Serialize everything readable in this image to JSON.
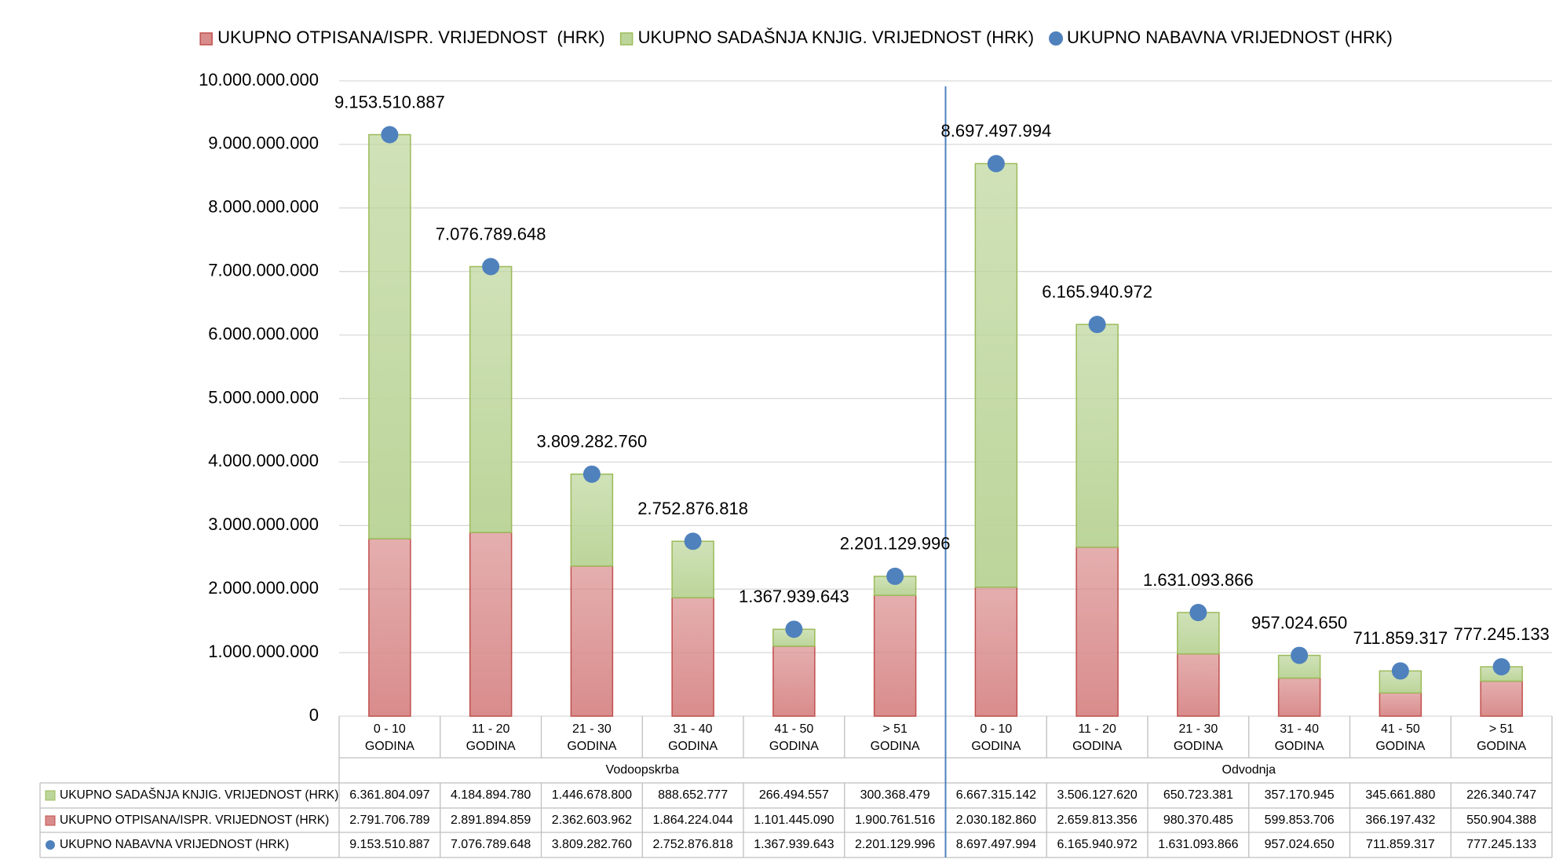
{
  "chart_data": {
    "type": "bar",
    "categories": [
      "0 - 10\nGODINA",
      "11 - 20\nGODINA",
      "21 - 30\nGODINA",
      "31 - 40\nGODINA",
      "41 - 50\nGODINA",
      "> 51\nGODINA",
      "0 - 10\nGODINA",
      "11 - 20\nGODINA",
      "21 - 30\nGODINA",
      "31 - 40\nGODINA",
      "41 - 50\nGODINA",
      "> 51\nGODINA"
    ],
    "groups": [
      "Vodoopskrba",
      "Odvodnja"
    ],
    "series": [
      {
        "name": "UKUPNO OTPISANA/ISPR. VRIJEDNOST  (HRK)",
        "type": "bar",
        "color": "#d98c8c",
        "stroke": "#c0504d",
        "values": [
          2791706789,
          2891894859,
          2362603962,
          1864224044,
          1101445090,
          1900761516,
          2030182860,
          2659813356,
          980370485,
          599853706,
          366197432,
          550904388
        ],
        "value_labels": [
          "2.791.706.789",
          "2.891.894.859",
          "2.362.603.962",
          "1.864.224.044",
          "1.101.445.090",
          "1.900.761.516",
          "2.030.182.860",
          "2.659.813.356",
          "980.370.485",
          "599.853.706",
          "366.197.432",
          "550.904.388"
        ]
      },
      {
        "name": "UKUPNO SADAŠNJA KNJIG. VRIJEDNOST (HRK)",
        "type": "bar",
        "color": "#bcd59a",
        "stroke": "#9bbb59",
        "values": [
          6361804097,
          4184894780,
          1446678800,
          888652777,
          266494557,
          300368479,
          6667315142,
          3506127620,
          650723381,
          357170945,
          345661880,
          226340747
        ],
        "value_labels": [
          "6.361.804.097",
          "4.184.894.780",
          "1.446.678.800",
          "888.652.777",
          "266.494.557",
          "300.368.479",
          "6.667.315.142",
          "3.506.127.620",
          "650.723.381",
          "357.170.945",
          "345.661.880",
          "226.340.747"
        ]
      },
      {
        "name": "UKUPNO NABAVNA VRIJEDNOST (HRK)",
        "type": "scatter",
        "color": "#4f81bd",
        "values": [
          9153510887,
          7076789648,
          3809282760,
          2752876818,
          1367939643,
          2201129996,
          8697497994,
          6165940972,
          1631093866,
          957024650,
          711859317,
          777245133
        ],
        "value_labels": [
          "9.153.510.887",
          "7.076.789.648",
          "3.809.282.760",
          "2.752.876.818",
          "1.367.939.643",
          "2.201.129.996",
          "8.697.497.994",
          "6.165.940.972",
          "1.631.093.866",
          "957.024.650",
          "711.859.317",
          "777.245.133"
        ]
      }
    ],
    "ylim": [
      0,
      10000000000
    ],
    "yticks": [
      0,
      {
        "value": 1000000000,
        "label": "1.000.000.000"
      },
      {
        "value": 2000000000,
        "label": "2.000.000.000"
      },
      {
        "value": 3000000000,
        "label": "3.000.000.000"
      },
      {
        "value": 4000000000,
        "label": "4.000.000.000"
      },
      {
        "value": 5000000000,
        "label": "5.000.000.000"
      },
      {
        "value": 6000000000,
        "label": "6.000.000.000"
      },
      {
        "value": 7000000000,
        "label": "7.000.000.000"
      },
      {
        "value": 8000000000,
        "label": "8.000.000.000"
      },
      {
        "value": 9000000000,
        "label": "9.000.000.000"
      },
      {
        "value": 10000000000,
        "label": "10.000.000.000"
      }
    ],
    "grid": true,
    "legend": "top"
  }
}
